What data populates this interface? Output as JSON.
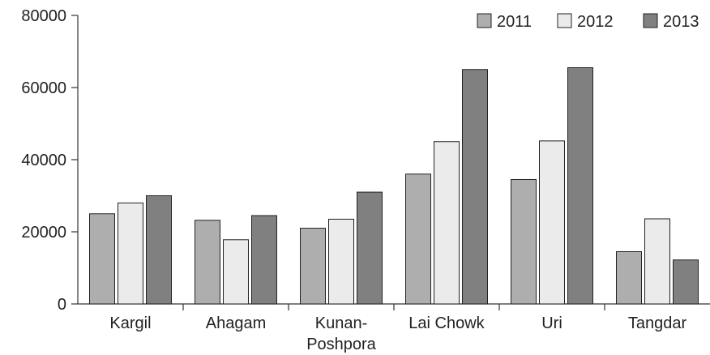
{
  "chart_data": {
    "type": "bar",
    "categories": [
      [
        "Kargil"
      ],
      [
        "Ahagam"
      ],
      [
        "Kunan-",
        "Poshpora"
      ],
      [
        "Lai Chowk"
      ],
      [
        "Uri"
      ],
      [
        "Tangdar"
      ]
    ],
    "series": [
      {
        "name": "2011",
        "color": "#aeaeae",
        "values": [
          25000,
          23200,
          21000,
          36000,
          34500,
          14500
        ]
      },
      {
        "name": "2012",
        "color": "#ebebeb",
        "values": [
          28000,
          17800,
          23500,
          45000,
          45200,
          23600
        ]
      },
      {
        "name": "2013",
        "color": "#808080",
        "values": [
          30000,
          24500,
          31000,
          65000,
          65500,
          12200
        ]
      }
    ],
    "ylim": [
      0,
      80000
    ],
    "yticks": [
      "0",
      "20000",
      "40000",
      "60000",
      "80000"
    ],
    "ytick_values": [
      0,
      20000,
      40000,
      60000,
      80000
    ],
    "legend": "top-right",
    "grid": false
  }
}
